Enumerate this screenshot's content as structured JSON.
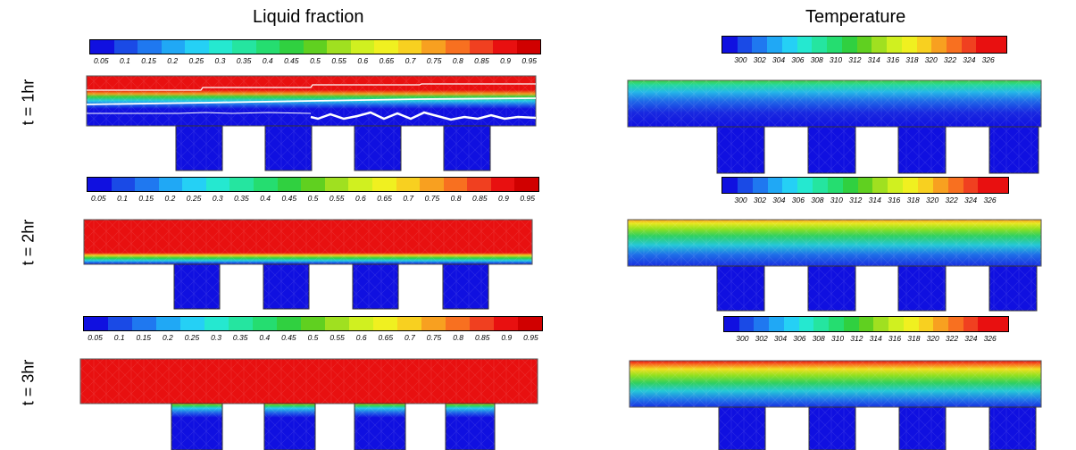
{
  "titles": {
    "liquid_fraction": "Liquid fraction",
    "temperature": "Temperature"
  },
  "row_labels": [
    "t = 1hr",
    "t = 2hr",
    "t = 3hr"
  ],
  "colorbars": {
    "liquid_fraction": {
      "ticks": [
        "0.05",
        "0.1",
        "0.15",
        "0.2",
        "0.25",
        "0.3",
        "0.35",
        "0.4",
        "0.45",
        "0.5",
        "0.55",
        "0.6",
        "0.65",
        "0.7",
        "0.75",
        "0.8",
        "0.85",
        "0.9",
        "0.95"
      ]
    },
    "temperature": {
      "ticks": [
        "300",
        "302",
        "304",
        "306",
        "308",
        "310",
        "312",
        "314",
        "316",
        "318",
        "320",
        "322",
        "324",
        "326"
      ]
    },
    "colors": [
      "#1010e0",
      "#1a4ae6",
      "#1f78f0",
      "#20a8f5",
      "#25d0f5",
      "#25e8d0",
      "#25e5a0",
      "#25dd70",
      "#30d040",
      "#60d020",
      "#a0e020",
      "#d0f020",
      "#f0f020",
      "#f8d020",
      "#f8a020",
      "#f87020",
      "#f04020",
      "#e81010",
      "#d00000"
    ]
  }
}
